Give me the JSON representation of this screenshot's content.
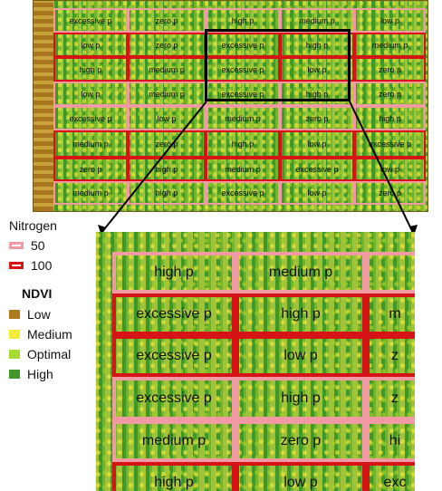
{
  "legend": {
    "nitrogen_title": "Nitrogen",
    "nitrogen_items": [
      {
        "label": "50",
        "color": "#f29aa3"
      },
      {
        "label": "100",
        "color": "#d61418"
      }
    ],
    "ndvi_title": "NDVI",
    "ndvi_items": [
      {
        "label": "Low",
        "color": "#b07a1e"
      },
      {
        "label": "Medium",
        "color": "#f5ea3a"
      },
      {
        "label": "Optimal",
        "color": "#a6dc32"
      },
      {
        "label": "High",
        "color": "#3f9a2a"
      }
    ]
  },
  "overview_rows": [
    [
      {
        "label": "excessive p",
        "n": "50"
      },
      {
        "label": "zero p",
        "n": "50"
      },
      {
        "label": "high p",
        "n": "50"
      },
      {
        "label": "medium p",
        "n": "50"
      },
      {
        "label": "low p",
        "n": "50"
      }
    ],
    [
      {
        "label": "low p",
        "n": "100"
      },
      {
        "label": "zero p",
        "n": "100"
      },
      {
        "label": "excessive p",
        "n": "100"
      },
      {
        "label": "high p",
        "n": "100"
      },
      {
        "label": "medium p",
        "n": "100"
      }
    ],
    [
      {
        "label": "high p",
        "n": "100"
      },
      {
        "label": "medium p",
        "n": "100"
      },
      {
        "label": "excessive p",
        "n": "100"
      },
      {
        "label": "low p",
        "n": "100"
      },
      {
        "label": "zero p",
        "n": "100"
      }
    ],
    [
      {
        "label": "low p",
        "n": "50"
      },
      {
        "label": "medium p",
        "n": "50"
      },
      {
        "label": "excessive p",
        "n": "50"
      },
      {
        "label": "high p",
        "n": "50"
      },
      {
        "label": "zero p",
        "n": "50"
      }
    ],
    [
      {
        "label": "excessive p",
        "n": "50"
      },
      {
        "label": "low p",
        "n": "50"
      },
      {
        "label": "medium p",
        "n": "50"
      },
      {
        "label": "zero p",
        "n": "50"
      },
      {
        "label": "high p",
        "n": "50"
      }
    ],
    [
      {
        "label": "medium p",
        "n": "100"
      },
      {
        "label": "zero p",
        "n": "100"
      },
      {
        "label": "high p",
        "n": "100"
      },
      {
        "label": "low p",
        "n": "100"
      },
      {
        "label": "excessive p",
        "n": "100"
      }
    ],
    [
      {
        "label": "zero p",
        "n": "100"
      },
      {
        "label": "high p",
        "n": "100"
      },
      {
        "label": "medium p",
        "n": "100"
      },
      {
        "label": "excessive p",
        "n": "100"
      },
      {
        "label": "low p",
        "n": "100"
      }
    ],
    [
      {
        "label": "medium p",
        "n": "50"
      },
      {
        "label": "high p",
        "n": "50"
      },
      {
        "label": "excessive p",
        "n": "50"
      },
      {
        "label": "low p",
        "n": "50"
      },
      {
        "label": "zero p",
        "n": "50"
      }
    ]
  ],
  "inset_rows": [
    [
      {
        "label": "high p",
        "n": "50"
      },
      {
        "label": "medium p",
        "n": "50"
      },
      {
        "label": "",
        "n": "50"
      }
    ],
    [
      {
        "label": "excessive p",
        "n": "100"
      },
      {
        "label": "high p",
        "n": "100"
      },
      {
        "label": "m",
        "n": "100"
      }
    ],
    [
      {
        "label": "excessive p",
        "n": "100"
      },
      {
        "label": "low p",
        "n": "100"
      },
      {
        "label": "z",
        "n": "100"
      }
    ],
    [
      {
        "label": "excessive p",
        "n": "50"
      },
      {
        "label": "high p",
        "n": "50"
      },
      {
        "label": "z",
        "n": "50"
      }
    ],
    [
      {
        "label": "medium p",
        "n": "50"
      },
      {
        "label": "zero p",
        "n": "50"
      },
      {
        "label": "hi",
        "n": "50"
      }
    ],
    [
      {
        "label": "high p",
        "n": "100"
      },
      {
        "label": "low p",
        "n": "100"
      },
      {
        "label": "exc",
        "n": "100"
      }
    ]
  ]
}
